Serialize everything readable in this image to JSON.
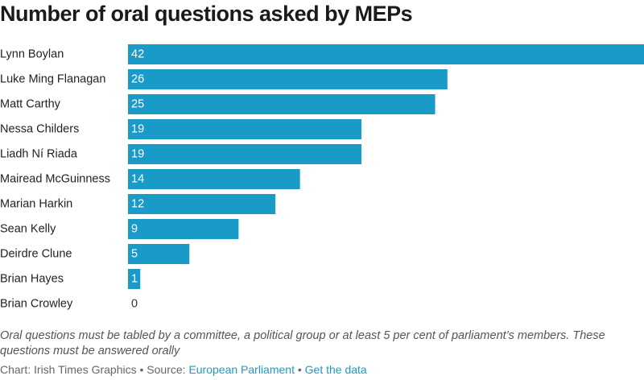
{
  "title": "Number of oral questions asked by MEPs",
  "note": "Oral questions must be tabled by a committee, a political group or at least 5 per cent of parliament’s members. These questions must be answered orally",
  "footer": {
    "credit": "Chart: Irish Times Graphics",
    "separator": " • ",
    "source_prefix": "Source: ",
    "source_link": "European Parliament",
    "data_link": "Get the data"
  },
  "colors": {
    "bar": "#1a9bc7",
    "label_inside": "#ffffff",
    "label_outside": "#333333"
  },
  "chart_data": {
    "type": "bar",
    "orientation": "horizontal",
    "title": "Number of oral questions asked by MEPs",
    "categories": [
      "Lynn Boylan",
      "Luke Ming Flanagan",
      "Matt Carthy",
      "Nessa Childers",
      "Liadh Ní Riada",
      "Mairead McGuinness",
      "Marian Harkin",
      "Sean Kelly",
      "Deirdre Clune",
      "Brian Hayes",
      "Brian Crowley"
    ],
    "values": [
      42,
      26,
      25,
      19,
      19,
      14,
      12,
      9,
      5,
      1,
      0
    ],
    "xlim": [
      0,
      42
    ],
    "grid": false,
    "legend": "none"
  }
}
